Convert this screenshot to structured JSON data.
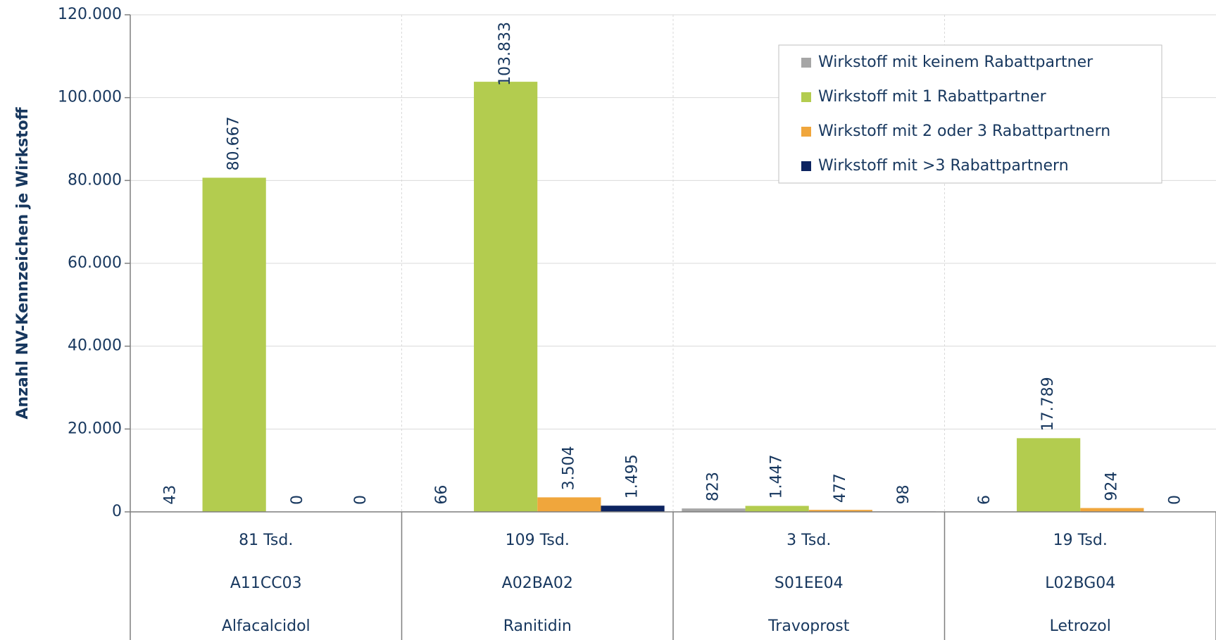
{
  "chart_data": {
    "type": "bar",
    "y_label": "Anzahl NV-Kennzeichen je Wirkstoff",
    "categories": [
      "Alfacalcidol",
      "Ranitidin",
      "Travoprost",
      "Letrozol"
    ],
    "category_codes": [
      "A11CC03",
      "A02BA02",
      "S01EE04",
      "L02BG04"
    ],
    "category_totals": [
      "81 Tsd.",
      "109 Tsd.",
      "3 Tsd.",
      "19 Tsd."
    ],
    "series": [
      {
        "name": "Wirkstoff mit keinem Rabattpartner",
        "color": "#a6a6a6",
        "values": [
          43,
          66,
          823,
          6
        ],
        "value_labels": [
          "43",
          "66",
          "823",
          "6"
        ]
      },
      {
        "name": "Wirkstoff mit 1 Rabattpartner",
        "color": "#b3cc4f",
        "values": [
          80667,
          103833,
          1447,
          17789
        ],
        "value_labels": [
          "80.667",
          "103.833",
          "1.447",
          "17.789"
        ]
      },
      {
        "name": "Wirkstoff mit 2 oder 3 Rabattpartnern",
        "color": "#f0a63c",
        "values": [
          0,
          3504,
          477,
          924
        ],
        "value_labels": [
          "0",
          "3.504",
          "477",
          "924"
        ]
      },
      {
        "name": "Wirkstoff mit >3 Rabattpartnern",
        "color": "#0d2460",
        "values": [
          0,
          1495,
          98,
          0
        ],
        "value_labels": [
          "0",
          "1.495",
          "98",
          "0"
        ]
      }
    ],
    "ylim": [
      0,
      120000
    ],
    "yticks": [
      0,
      {
        "value": 20000,
        "label": "20.000"
      },
      {
        "value": 40000,
        "label": "40.000"
      },
      {
        "value": 60000,
        "label": "60.000"
      },
      {
        "value": 80000,
        "label": "80.000"
      },
      {
        "value": 100000,
        "label": "100.000"
      },
      {
        "value": 120000,
        "label": "120.000"
      }
    ],
    "grid": true,
    "legend": "upper right"
  }
}
